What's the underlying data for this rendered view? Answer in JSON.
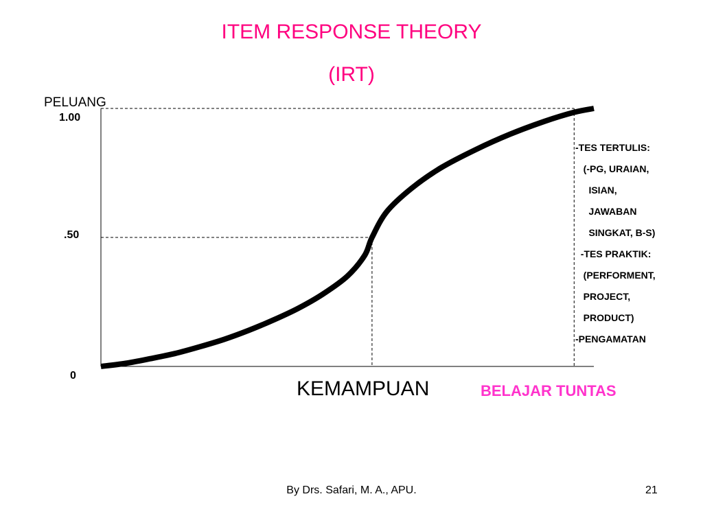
{
  "slide": {
    "title_line1": "ITEM RESPONSE THEORY",
    "title_line2": "(IRT)",
    "footer": "By Drs. Safari, M. A., APU.",
    "page_number": "21",
    "title_color": "#ff007f",
    "highlight_color": "#ff33cc"
  },
  "chart_data": {
    "type": "line",
    "ylabel": "PELUANG",
    "xlabel": "KEMAMPUAN",
    "y_ticks": [
      "1.00",
      ".50",
      "0"
    ],
    "ylim": [
      0,
      1
    ],
    "series": [
      {
        "y": [
          0.0,
          0.012,
          0.03,
          0.05,
          0.076,
          0.105,
          0.14,
          0.18,
          0.225,
          0.28,
          0.35,
          0.43,
          0.5,
          0.6,
          0.69,
          0.77,
          0.84,
          0.9,
          0.95,
          0.985,
          1.0
        ],
        "x": [
          0,
          0.05,
          0.1,
          0.15,
          0.2,
          0.25,
          0.3,
          0.35,
          0.4,
          0.45,
          0.5,
          0.535,
          0.55,
          0.58,
          0.63,
          0.69,
          0.76,
          0.83,
          0.9,
          0.96,
          1.0
        ]
      }
    ],
    "reference_lines": [
      {
        "type": "horizontal",
        "y": 1.0,
        "style": "dashed"
      },
      {
        "type": "horizontal",
        "y": 0.5,
        "style": "dashed"
      },
      {
        "type": "vertical",
        "x": 0.55,
        "style": "dashed"
      },
      {
        "type": "vertical",
        "x": 0.96,
        "style": "dashed"
      }
    ],
    "annotation_belajar_tuntas": "BELAJAR  TUNTAS"
  },
  "notes": [
    "-TES TERTULIS:",
    "   (-PG, URAIAN,",
    "     ISIAN,",
    "     JAWABAN",
    "     SINGKAT, B-S)",
    "  -TES PRAKTIK:",
    "   (PERFORMENT,",
    "   PROJECT,",
    "   PRODUCT)",
    "-PENGAMATAN"
  ]
}
